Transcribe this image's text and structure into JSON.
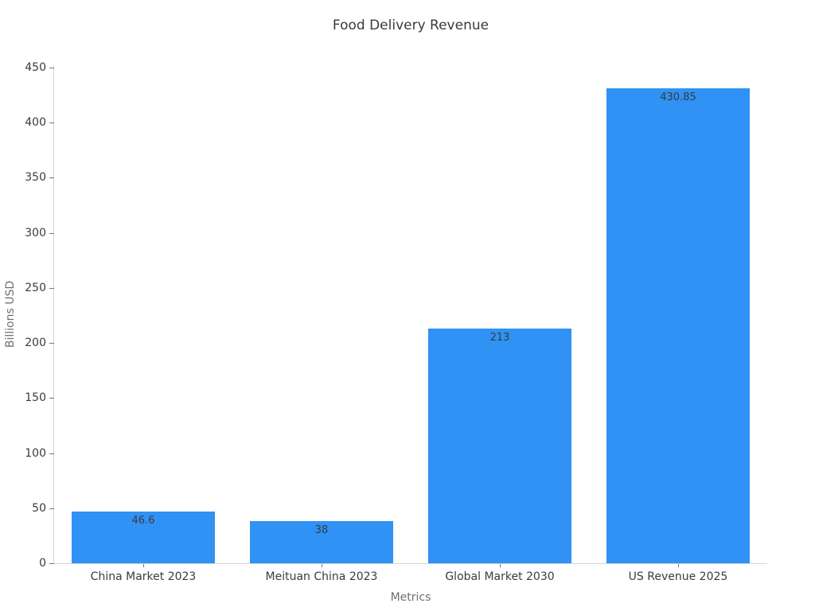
{
  "figure": {
    "title": "Food Delivery Revenue"
  },
  "chart_data": {
    "type": "bar",
    "title": "Food Delivery Revenue",
    "xlabel": "Metrics",
    "ylabel": "Billions USD",
    "categories": [
      "China Market 2023",
      "Meituan China 2023",
      "Global Market 2030",
      "US Revenue 2025"
    ],
    "values": [
      46.6,
      38,
      213,
      430.85
    ],
    "value_labels": [
      "46.6",
      "38",
      "213",
      "430.85"
    ],
    "yticks": [
      0,
      50,
      100,
      150,
      200,
      250,
      300,
      350,
      400,
      450
    ],
    "ylim": [
      0,
      452
    ],
    "bar_color": "#2F92F4",
    "grid": false,
    "legend_position": "none"
  },
  "colors": {
    "axis": "#d6d6d6",
    "tick": "#757575",
    "tick_label": "#3b3b3b",
    "value_label": "#3b3b3b",
    "axis_label": "#6f6f6f",
    "title": "#3a3a3a",
    "bar": "#2F92F4",
    "background": "#ffffff"
  }
}
